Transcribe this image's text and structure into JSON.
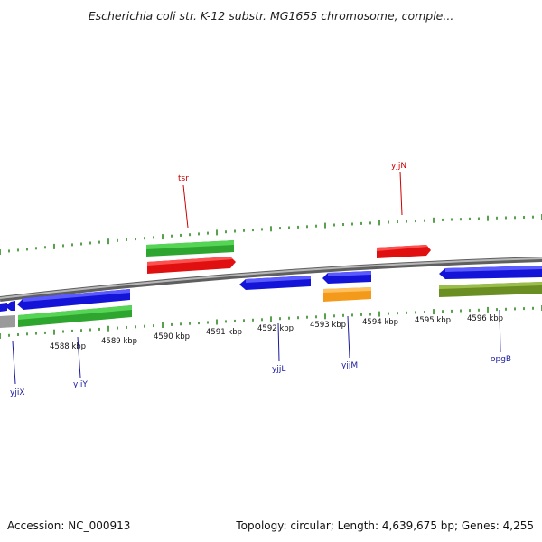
{
  "title": "Escherichia coli str. K-12 substr. MG1655 chromosome, comple...",
  "footer": {
    "accession": "Accession: NC_000913",
    "summary": "Topology: circular; Length: 4,639,675 bp; Genes: 4,255"
  },
  "colors": {
    "backbone": "#8a8a8a",
    "tick": "#2e8b22",
    "fwd_gene": "#e01010",
    "fwd_cds": "#3cbf3c",
    "rev_gene": "#1414d8",
    "rev_cds_green": "#3cbf3c",
    "rev_cds_orange": "#f39a1a",
    "rev_cds_olive": "#6b8e23",
    "label_fwd": "#cc0000",
    "label_rev": "#1a1aa0"
  },
  "scale": {
    "unit": "kbp",
    "labels": [
      "4588 kbp",
      "4589 kbp",
      "4590 kbp",
      "4591 kbp",
      "4592 kbp",
      "4593 kbp",
      "4594 kbp",
      "4595 kbp",
      "4596 kbp"
    ]
  },
  "genes_forward": [
    {
      "name": "tsr"
    },
    {
      "name": "yjjN"
    }
  ],
  "genes_reverse": [
    {
      "name": "yjiX"
    },
    {
      "name": "yjiY"
    },
    {
      "name": "yjjL"
    },
    {
      "name": "yjjM"
    },
    {
      "name": "opgB"
    }
  ]
}
